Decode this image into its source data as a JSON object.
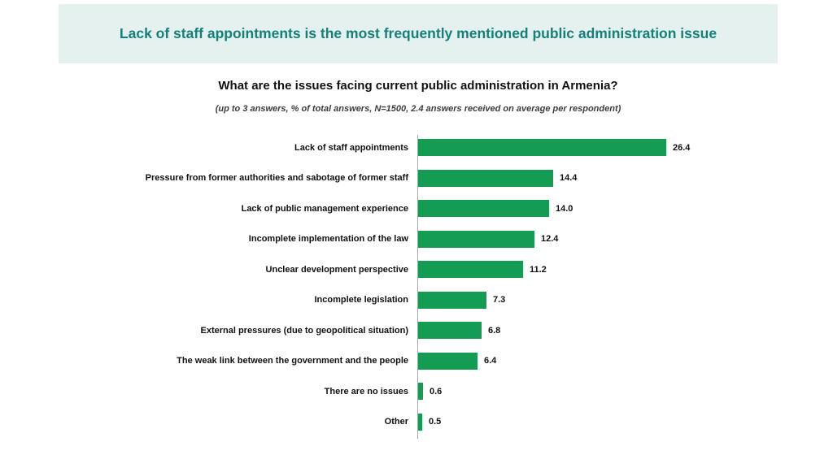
{
  "banner": {
    "title": "Lack of staff appointments is the most frequently mentioned public administration issue"
  },
  "colors": {
    "banner_bg": "#e4f1ef",
    "banner_text": "#157f79",
    "bar": "#149c53",
    "value_text": "#111111",
    "axis_line": "#a6a6a6"
  },
  "chart_data": {
    "type": "bar",
    "orientation": "horizontal",
    "title": "What are the issues facing current public administration in Armenia?",
    "subtitle": "(up to 3 answers, %  of total answers, N=1500,  2.4 answers received on average per respondent)",
    "categories": [
      "Lack of staff appointments",
      "Pressure from former authorities and sabotage of former staff",
      "Lack of public management experience",
      "Incomplete implementation of the law",
      "Unclear development perspective",
      "Incomplete legislation",
      "External pressures (due to geopolitical situation)",
      "The weak link between the government and the people",
      "There are no issues",
      "Other"
    ],
    "values": [
      26.4,
      14.4,
      14.0,
      12.4,
      11.2,
      7.3,
      6.8,
      6.4,
      0.6,
      0.5
    ],
    "value_labels": [
      "26.4",
      "14.4",
      "14.0",
      "12.4",
      "11.2",
      "7.3",
      "6.8",
      "6.4",
      "0.6",
      "0.5"
    ],
    "xlabel": "",
    "ylabel": "",
    "xlim": [
      0,
      30
    ],
    "grid": false,
    "legend": false,
    "data_labels": "outside-end"
  }
}
